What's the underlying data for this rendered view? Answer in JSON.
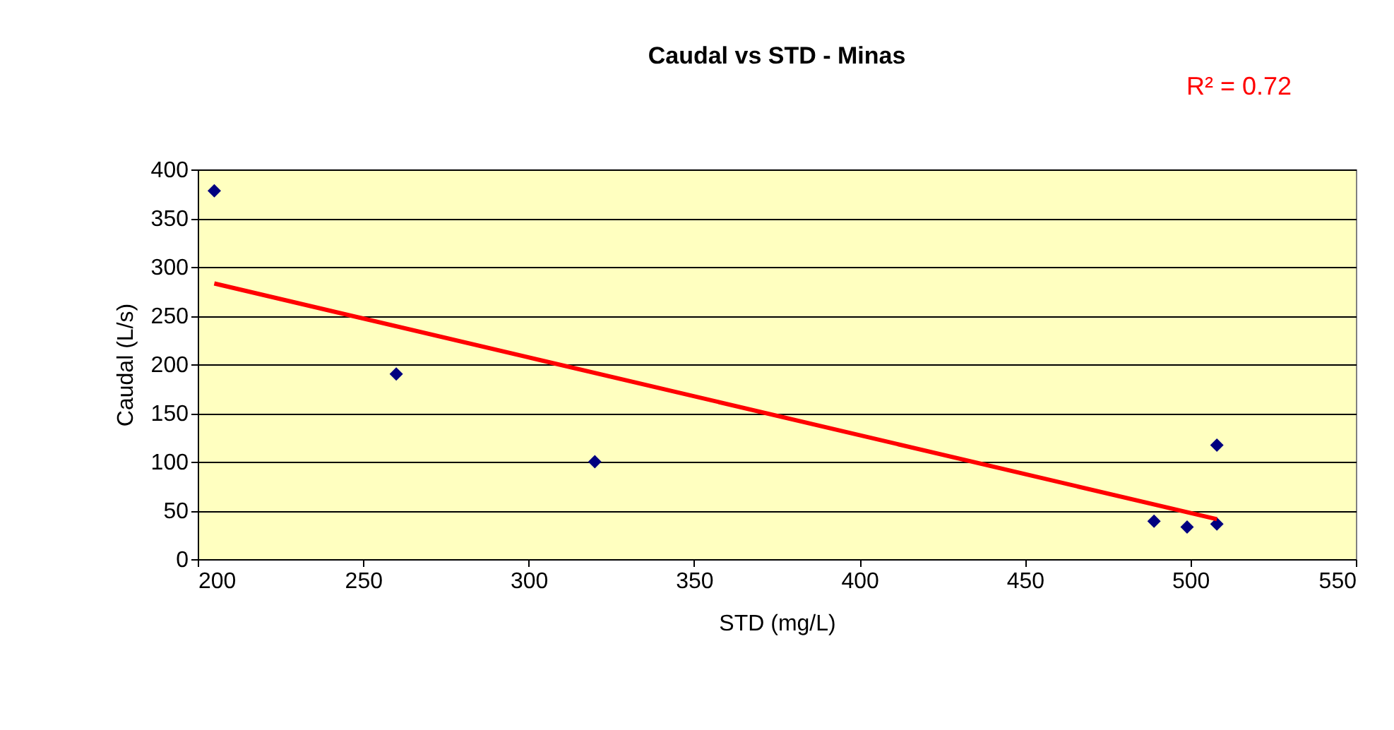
{
  "chart_data": {
    "type": "scatter",
    "title": "Caudal  vs STD - Minas",
    "xlabel": "STD (mg/L)",
    "ylabel": "Caudal (L/s)",
    "xlim": [
      200,
      550
    ],
    "xticks": [
      200,
      250,
      300,
      350,
      400,
      450,
      500,
      550
    ],
    "ylim": [
      0,
      400
    ],
    "yticks": [
      0,
      50,
      100,
      150,
      200,
      250,
      300,
      350,
      400
    ],
    "grid": "y",
    "annotations": [
      "R² = 0.72"
    ],
    "series": [
      {
        "color": "#000080",
        "marker": "diamond",
        "x": [
          205,
          260,
          320,
          489,
          499,
          508,
          508
        ],
        "values": [
          378,
          190,
          100,
          39,
          33,
          117,
          36
        ]
      },
      {
        "type": "line",
        "marker": "none",
        "color": "#ff0000",
        "x": [
          205,
          508
        ],
        "values": [
          283,
          41
        ]
      }
    ]
  }
}
